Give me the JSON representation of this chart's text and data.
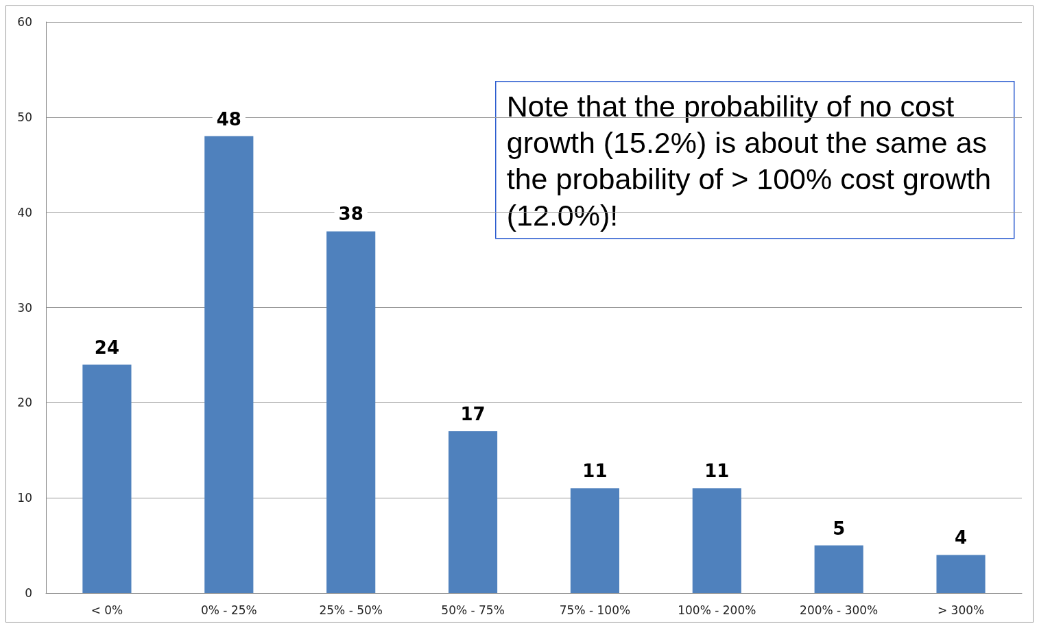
{
  "chart_data": {
    "type": "bar",
    "categories": [
      "< 0%",
      "0% - 25%",
      "25% - 50%",
      "50% - 75%",
      "75% - 100%",
      "100% - 200%",
      "200% - 300%",
      "> 300%"
    ],
    "values": [
      24,
      48,
      38,
      17,
      11,
      11,
      5,
      4
    ],
    "color": "#4f81bd",
    "ylim": [
      0,
      60
    ],
    "yticks": [
      0,
      10,
      20,
      30,
      40,
      50,
      60
    ],
    "grid": "y",
    "data_labels": true,
    "annotations": [
      "Note that the probability of no cost growth (15.2%) is about the same as the probability of > 100% cost growth (12.0%)!"
    ]
  }
}
